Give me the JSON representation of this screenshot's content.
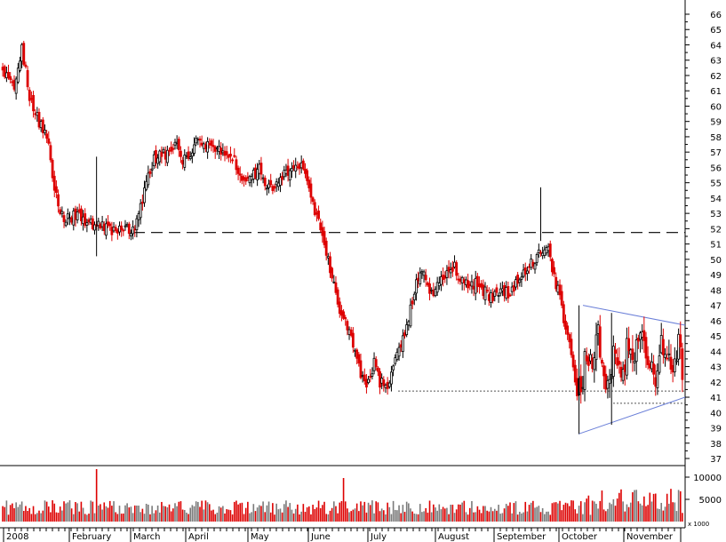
{
  "chart_data": {
    "type": "candlestick",
    "colors": {
      "up": "#000000",
      "down": "#dd0000",
      "resistance_line": "#000000",
      "support_line": "#555555",
      "triangle": "#6a7fd8",
      "volume_up": "#7a7a7a",
      "volume_down": "#dd0000"
    },
    "price_axis": {
      "ylim": [
        36.5,
        67.0
      ],
      "ticks": [
        37,
        38,
        39,
        40,
        41,
        42,
        43,
        44,
        45,
        46,
        47,
        48,
        49,
        50,
        51,
        52,
        53,
        54,
        55,
        56,
        57,
        58,
        59,
        60,
        61,
        62,
        63,
        64,
        65,
        66
      ],
      "labels": [
        "37",
        "38",
        "39",
        "40",
        "41",
        "42",
        "43",
        "44",
        "45",
        "46",
        "47",
        "48",
        "49",
        "50",
        "51",
        "52",
        "53",
        "54",
        "55",
        "56",
        "57",
        "58",
        "59",
        "60",
        "61",
        "62",
        "63",
        "64",
        "65",
        "66"
      ]
    },
    "volume_axis": {
      "ylim": [
        0,
        12000
      ],
      "ticks": [
        5000,
        10000
      ],
      "labels": [
        "5000",
        "10000"
      ],
      "scale_label": "x 1000"
    },
    "months": [
      "2008",
      "February",
      "March",
      "April",
      "May",
      "June",
      "July",
      "August",
      "September",
      "October",
      "November"
    ],
    "anchors": [
      {
        "x": 0,
        "v": 62.3
      },
      {
        "x": 6,
        "v": 61.0
      },
      {
        "x": 10,
        "v": 63.8
      },
      {
        "x": 14,
        "v": 60.6
      },
      {
        "x": 19,
        "v": 59.0
      },
      {
        "x": 24,
        "v": 57.4
      },
      {
        "x": 29,
        "v": 53.2
      },
      {
        "x": 34,
        "v": 52.6
      },
      {
        "x": 39,
        "v": 53.0
      },
      {
        "x": 44,
        "v": 52.1
      },
      {
        "x": 49,
        "v": 52.5
      },
      {
        "x": 54,
        "v": 52.0
      },
      {
        "x": 59,
        "v": 51.8
      },
      {
        "x": 63,
        "v": 52.2
      },
      {
        "x": 67,
        "v": 51.9
      },
      {
        "x": 70,
        "v": 52.5
      },
      {
        "x": 74,
        "v": 54.4
      },
      {
        "x": 78,
        "v": 56.2
      },
      {
        "x": 82,
        "v": 57.1
      },
      {
        "x": 86,
        "v": 56.8
      },
      {
        "x": 90,
        "v": 57.5
      },
      {
        "x": 94,
        "v": 56.6
      },
      {
        "x": 98,
        "v": 56.9
      },
      {
        "x": 102,
        "v": 57.8
      },
      {
        "x": 106,
        "v": 57.3
      },
      {
        "x": 110,
        "v": 57.4
      },
      {
        "x": 114,
        "v": 56.9
      },
      {
        "x": 118,
        "v": 57.0
      },
      {
        "x": 122,
        "v": 56.1
      },
      {
        "x": 126,
        "v": 55.0
      },
      {
        "x": 130,
        "v": 55.5
      },
      {
        "x": 134,
        "v": 55.9
      },
      {
        "x": 138,
        "v": 54.8
      },
      {
        "x": 142,
        "v": 54.4
      },
      {
        "x": 146,
        "v": 55.6
      },
      {
        "x": 150,
        "v": 55.8
      },
      {
        "x": 154,
        "v": 56.4
      },
      {
        "x": 158,
        "v": 55.6
      },
      {
        "x": 162,
        "v": 53.4
      },
      {
        "x": 165,
        "v": 52.6
      },
      {
        "x": 168,
        "v": 51.2
      },
      {
        "x": 171,
        "v": 49.4
      },
      {
        "x": 175,
        "v": 47.2
      },
      {
        "x": 179,
        "v": 45.8
      },
      {
        "x": 183,
        "v": 44.3
      },
      {
        "x": 187,
        "v": 42.5
      },
      {
        "x": 190,
        "v": 41.7
      },
      {
        "x": 194,
        "v": 43.2
      },
      {
        "x": 197,
        "v": 42.0
      },
      {
        "x": 201,
        "v": 41.6
      },
      {
        "x": 205,
        "v": 43.4
      },
      {
        "x": 209,
        "v": 44.7
      },
      {
        "x": 212,
        "v": 46.0
      },
      {
        "x": 216,
        "v": 48.7
      },
      {
        "x": 220,
        "v": 49.2
      },
      {
        "x": 224,
        "v": 47.8
      },
      {
        "x": 228,
        "v": 48.5
      },
      {
        "x": 232,
        "v": 49.0
      },
      {
        "x": 236,
        "v": 49.5
      },
      {
        "x": 240,
        "v": 48.7
      },
      {
        "x": 244,
        "v": 48.1
      },
      {
        "x": 248,
        "v": 48.6
      },
      {
        "x": 252,
        "v": 47.8
      },
      {
        "x": 256,
        "v": 47.5
      },
      {
        "x": 260,
        "v": 48.2
      },
      {
        "x": 264,
        "v": 47.8
      },
      {
        "x": 268,
        "v": 48.5
      },
      {
        "x": 272,
        "v": 49.0
      },
      {
        "x": 276,
        "v": 49.7
      },
      {
        "x": 280,
        "v": 50.5
      },
      {
        "x": 284,
        "v": 51.0
      },
      {
        "x": 287,
        "v": 49.3
      },
      {
        "x": 290,
        "v": 48.0
      },
      {
        "x": 293,
        "v": 46.2
      },
      {
        "x": 296,
        "v": 44.9
      },
      {
        "x": 299,
        "v": 42.0
      },
      {
        "x": 302,
        "v": 41.5
      },
      {
        "x": 305,
        "v": 44.2
      },
      {
        "x": 308,
        "v": 43.2
      },
      {
        "x": 311,
        "v": 45.2
      },
      {
        "x": 314,
        "v": 42.7
      },
      {
        "x": 317,
        "v": 41.6
      },
      {
        "x": 320,
        "v": 44.5
      },
      {
        "x": 323,
        "v": 41.9
      },
      {
        "x": 326,
        "v": 44.2
      },
      {
        "x": 329,
        "v": 43.0
      },
      {
        "x": 332,
        "v": 45.2
      },
      {
        "x": 335,
        "v": 44.2
      },
      {
        "x": 338,
        "v": 43.2
      },
      {
        "x": 341,
        "v": 42.5
      },
      {
        "x": 344,
        "v": 44.3
      },
      {
        "x": 347,
        "v": 44.1
      },
      {
        "x": 350,
        "v": 43.4
      },
      {
        "x": 353,
        "v": 44.4
      },
      {
        "x": 355,
        "v": 42.6
      }
    ]
  }
}
